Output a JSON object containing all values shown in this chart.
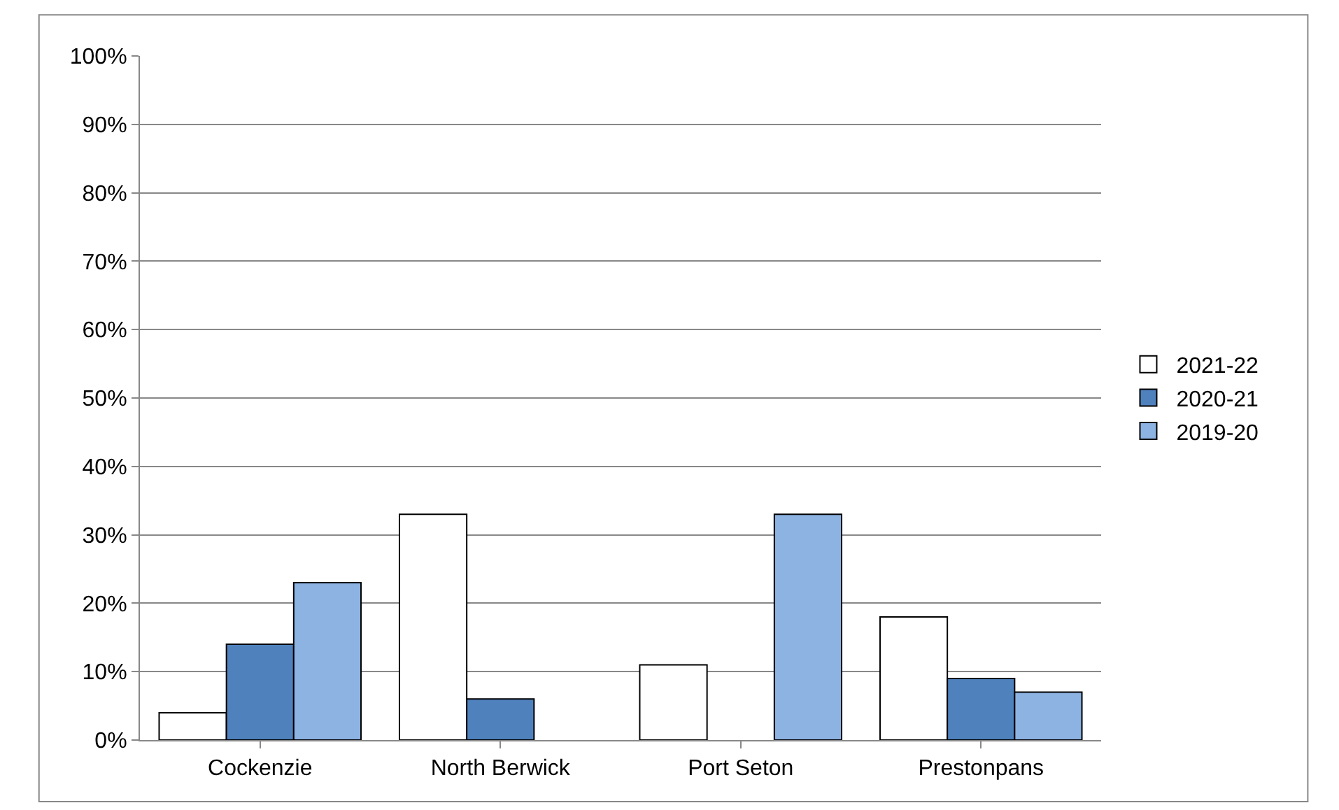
{
  "chart_data": {
    "type": "bar",
    "categories": [
      "Cockenzie",
      "North Berwick",
      "Port Seton",
      "Prestonpans"
    ],
    "series": [
      {
        "name": "2021-22",
        "color": "#ffffff",
        "values": [
          4,
          33,
          11,
          18
        ]
      },
      {
        "name": "2020-21",
        "color": "#4f81bd",
        "values": [
          14,
          6,
          null,
          9
        ]
      },
      {
        "name": "2019-20",
        "color": "#8db3e2",
        "values": [
          23,
          null,
          33,
          7
        ]
      }
    ],
    "ylim": [
      0,
      100
    ],
    "yticks": [
      {
        "value": 0,
        "label": "0%"
      },
      {
        "value": 10,
        "label": "10%"
      },
      {
        "value": 20,
        "label": "20%"
      },
      {
        "value": 30,
        "label": "30%"
      },
      {
        "value": 40,
        "label": "40%"
      },
      {
        "value": 50,
        "label": "50%"
      },
      {
        "value": 60,
        "label": "60%"
      },
      {
        "value": 70,
        "label": "70%"
      },
      {
        "value": 80,
        "label": "80%"
      },
      {
        "value": 90,
        "label": "90%"
      },
      {
        "value": 100,
        "label": "100%"
      }
    ],
    "grid": "y",
    "legend": "right"
  }
}
